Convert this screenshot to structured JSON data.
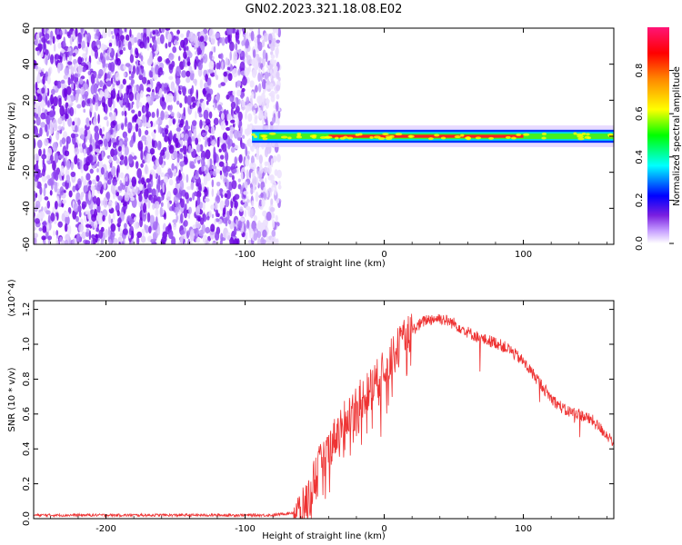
{
  "figure": {
    "title": "GN02.2023.321.18.08.E02"
  },
  "chart_data": [
    {
      "type": "heatmap",
      "xlabel": "Height of straight line (km)",
      "ylabel": "Frequency (Hz)",
      "xlim": [
        -252,
        165
      ],
      "ylim": [
        -60,
        60
      ],
      "xticks": [
        -200,
        -100,
        0,
        100
      ],
      "yticks": [
        -60,
        -40,
        -20,
        0,
        20,
        40,
        60
      ],
      "colorbar": {
        "label": "Normalized spectral amplitude",
        "range": [
          0,
          1
        ],
        "ticks": [
          "0.0",
          "0.2",
          "0.4",
          "0.6",
          "0.8"
        ]
      },
      "features": {
        "noise_region_x": [
          -252,
          -75
        ],
        "signal_band_center_hz": 0,
        "signal_band_half_width_hz": 3,
        "signal_start_x": -95,
        "strong_core_x": [
          -40,
          100
        ]
      }
    },
    {
      "type": "line",
      "xlabel": "Height of straight line (km)",
      "ylabel": "SNR (10 * v/v)",
      "yscale_note": "(x10^4)",
      "xlim": [
        -252,
        165
      ],
      "ylim": [
        0,
        1.25
      ],
      "xticks": [
        -200,
        -100,
        0,
        100
      ],
      "yticks": [
        "0.0",
        "0.2",
        "0.4",
        "0.6",
        "0.8",
        "1.0",
        "1.2"
      ],
      "series": [
        {
          "color": "#ee3333",
          "x": [
            -252,
            -200,
            -150,
            -100,
            -80,
            -60,
            -55,
            -50,
            -40,
            -30,
            -20,
            -10,
            0,
            10,
            20,
            30,
            40,
            50,
            60,
            70,
            80,
            90,
            100,
            110,
            120,
            130,
            140,
            150,
            160,
            165
          ],
          "y": [
            0.02,
            0.02,
            0.02,
            0.02,
            0.02,
            0.04,
            0.1,
            0.25,
            0.4,
            0.55,
            0.65,
            0.75,
            0.85,
            0.98,
            1.08,
            1.14,
            1.15,
            1.12,
            1.07,
            1.03,
            1.01,
            0.97,
            0.9,
            0.8,
            0.69,
            0.62,
            0.6,
            0.56,
            0.48,
            0.44
          ]
        }
      ]
    }
  ]
}
